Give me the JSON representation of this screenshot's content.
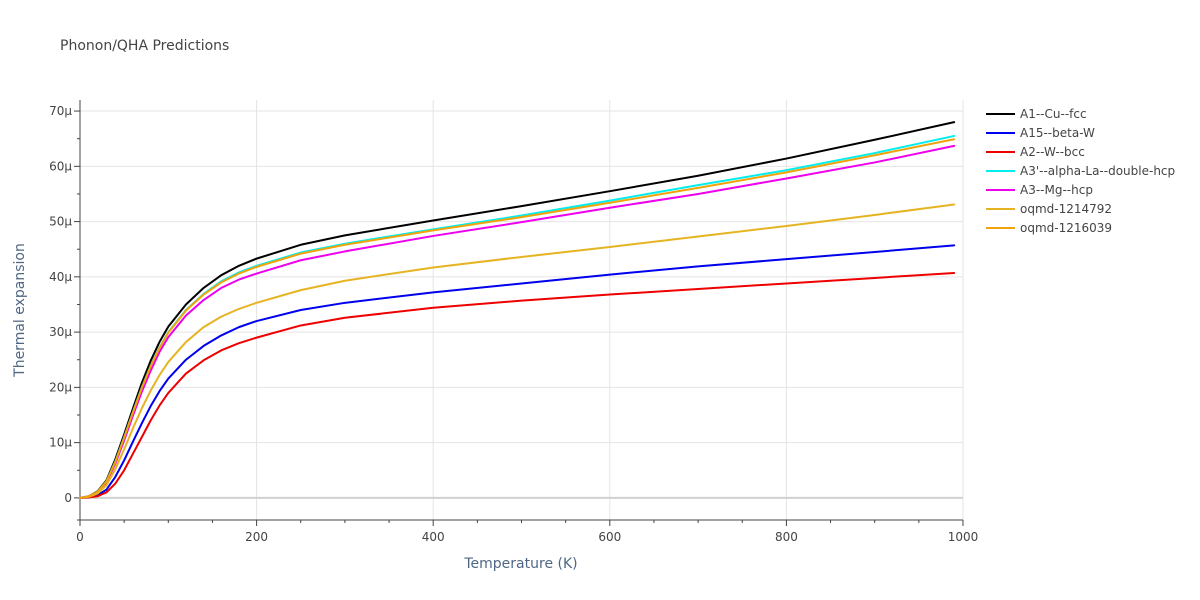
{
  "chart_data": {
    "type": "line",
    "title": "Phonon/QHA Predictions",
    "xlabel": "Temperature (K)",
    "ylabel": "Thermal expansion",
    "xlim": [
      0,
      1000
    ],
    "ylim": [
      -4,
      72
    ],
    "y_unit_suffix": "μ",
    "xticks": [
      0,
      200,
      400,
      600,
      800,
      1000
    ],
    "xtick_labels": [
      "0",
      "200",
      "400",
      "600",
      "800",
      "1000"
    ],
    "yticks": [
      0,
      10,
      20,
      30,
      40,
      50,
      60,
      70
    ],
    "ytick_labels": [
      "0",
      "10μ",
      "20μ",
      "30μ",
      "40μ",
      "50μ",
      "60μ",
      "70μ"
    ],
    "grid": true,
    "legend_position": "right",
    "x": [
      0,
      10,
      20,
      30,
      40,
      50,
      60,
      70,
      80,
      90,
      100,
      120,
      140,
      160,
      180,
      200,
      250,
      300,
      400,
      500,
      600,
      700,
      800,
      900,
      990
    ],
    "series": [
      {
        "name": "A1--Cu--fcc",
        "color": "#000000",
        "values": [
          0,
          0.3,
          1.2,
          3.2,
          7.0,
          11.5,
          16.2,
          20.8,
          24.8,
          28.2,
          31.0,
          35.0,
          38.0,
          40.3,
          42.0,
          43.3,
          45.8,
          47.5,
          50.2,
          52.8,
          55.5,
          58.3,
          61.4,
          64.8,
          68.0
        ]
      },
      {
        "name": "A15--beta-W",
        "color": "#0000ee",
        "values": [
          0,
          0.1,
          0.5,
          1.5,
          3.8,
          6.8,
          10.2,
          13.5,
          16.6,
          19.3,
          21.6,
          25.0,
          27.5,
          29.4,
          30.9,
          32.0,
          34.0,
          35.3,
          37.2,
          38.8,
          40.4,
          41.9,
          43.2,
          44.5,
          45.7
        ]
      },
      {
        "name": "A2--W--bcc",
        "color": "#ee0000",
        "values": [
          0,
          0.1,
          0.3,
          1.0,
          2.6,
          5.0,
          8.0,
          11.0,
          14.0,
          16.7,
          19.0,
          22.5,
          24.9,
          26.7,
          28.0,
          29.0,
          31.2,
          32.6,
          34.4,
          35.7,
          36.8,
          37.8,
          38.8,
          39.8,
          40.7
        ]
      },
      {
        "name": "A3'--alpha-La--double-hcp",
        "color": "#00eeee",
        "values": [
          0,
          0.3,
          1.1,
          3.0,
          6.6,
          11.0,
          15.6,
          20.0,
          23.9,
          27.2,
          30.0,
          34.0,
          36.9,
          39.2,
          40.8,
          42.0,
          44.4,
          46.0,
          48.6,
          51.1,
          53.8,
          56.6,
          59.3,
          62.4,
          65.5
        ]
      },
      {
        "name": "A3--Mg--hcp",
        "color": "#ee00ee",
        "values": [
          0,
          0.3,
          1.0,
          2.8,
          6.2,
          10.4,
          14.9,
          19.2,
          23.0,
          26.4,
          29.1,
          33.0,
          35.8,
          38.0,
          39.5,
          40.6,
          43.0,
          44.6,
          47.4,
          49.9,
          52.5,
          55.0,
          57.8,
          60.7,
          63.7
        ]
      },
      {
        "name": "oqmd-1214792",
        "color": "#e6b422",
        "values": [
          0,
          0.2,
          0.8,
          2.3,
          5.2,
          8.8,
          12.6,
          16.2,
          19.4,
          22.2,
          24.6,
          28.2,
          30.9,
          32.8,
          34.2,
          35.3,
          37.6,
          39.3,
          41.7,
          43.6,
          45.4,
          47.3,
          49.2,
          51.2,
          53.1
        ]
      },
      {
        "name": "oqmd-1216039",
        "color": "#f0a30a",
        "values": [
          0,
          0.3,
          1.1,
          3.0,
          6.5,
          10.9,
          15.5,
          19.9,
          23.8,
          27.1,
          29.9,
          33.9,
          36.8,
          39.0,
          40.6,
          41.8,
          44.2,
          45.8,
          48.4,
          50.8,
          53.4,
          56.1,
          58.9,
          62.0,
          64.9
        ]
      }
    ]
  }
}
